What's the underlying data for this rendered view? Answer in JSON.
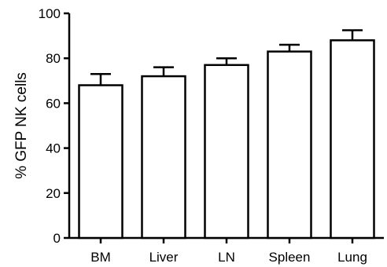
{
  "chart_data": {
    "type": "bar",
    "title": "",
    "xlabel": "",
    "ylabel": "% GFP NK cells",
    "ylim": [
      0,
      100
    ],
    "yticks": [
      0,
      20,
      40,
      60,
      80,
      100
    ],
    "categories": [
      "BM",
      "Liver",
      "LN",
      "Spleen",
      "Lung"
    ],
    "values": [
      68,
      72,
      77,
      83,
      88
    ],
    "errors": [
      5,
      4,
      3,
      3,
      4.5
    ],
    "error_bars": "upper-only",
    "bar_fill": "#ffffff",
    "bar_stroke": "#000000",
    "grid": false,
    "legend": "none"
  }
}
